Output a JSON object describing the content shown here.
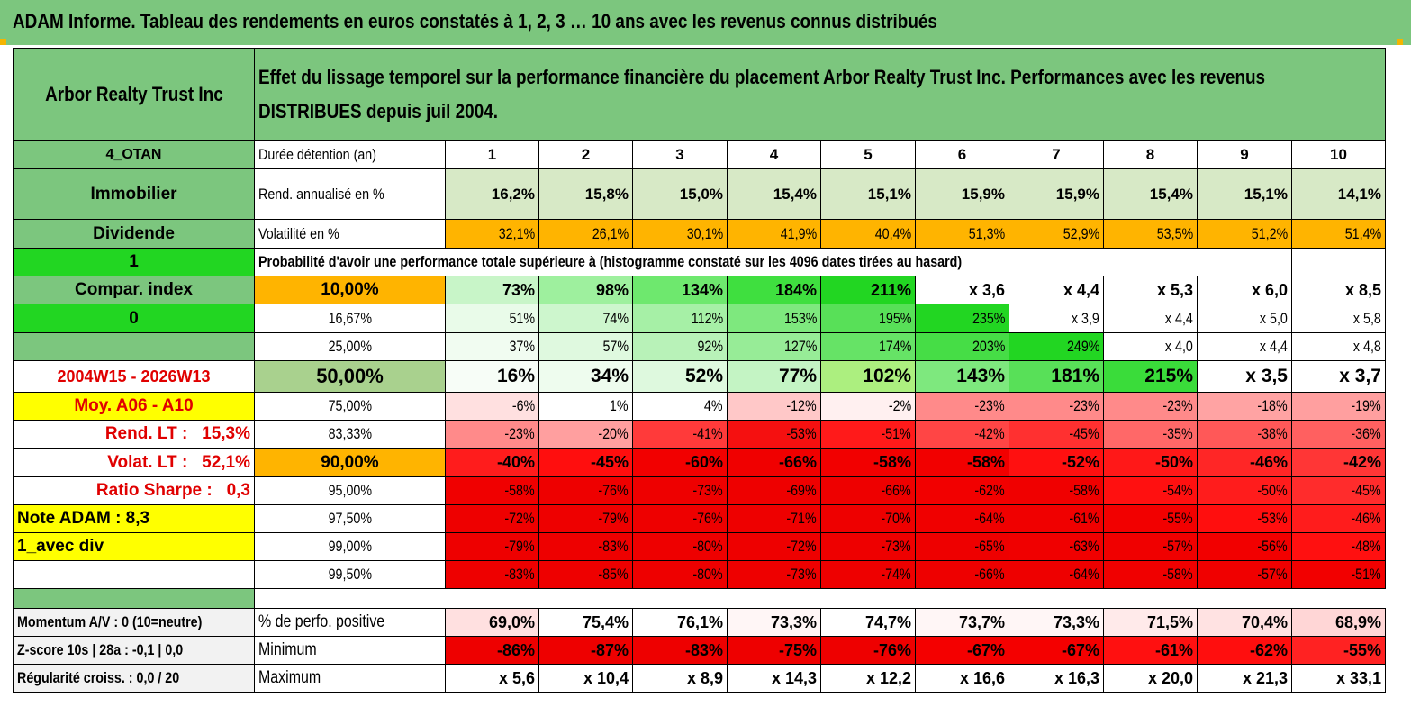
{
  "title": "ADAM Informe. Tableau des rendements en euros constatés à 1, 2, 3 … 10 ans avec les revenus connus distribués",
  "header": {
    "name": "Arbor Realty Trust Inc",
    "description_line1": "Effet du lissage temporel sur la performance financière du placement Arbor Realty Trust Inc. Performances avec les revenus",
    "description_line2": "DISTRIBUES depuis juil 2004."
  },
  "sidebar": {
    "code": "4_OTAN",
    "sector": "Immobilier",
    "type": "Dividende",
    "flag1": "1",
    "compar_index": "Compar. index",
    "flag2": "0",
    "period": "2004W15 - 2026W13",
    "moy": "Moy. A06 - A10",
    "rend_lt_label": "Rend. LT :",
    "rend_lt_value": "15,3%",
    "volat_lt_label": "Volat. LT :",
    "volat_lt_value": "52,1%",
    "sharpe_label": "Ratio Sharpe :",
    "sharpe_value": "0,3",
    "note": "Note ADAM : 8,3",
    "avec_div": "1_avec div"
  },
  "duration": {
    "label": "Durée détention (an)",
    "years": [
      "1",
      "2",
      "3",
      "4",
      "5",
      "6",
      "7",
      "8",
      "9",
      "10"
    ]
  },
  "rend": {
    "label": "Rend. annualisé en %",
    "values": [
      "16,2%",
      "15,8%",
      "15,0%",
      "15,4%",
      "15,1%",
      "15,9%",
      "15,9%",
      "15,4%",
      "15,1%",
      "14,1%"
    ]
  },
  "volat": {
    "label": "Volatilité en %",
    "values": [
      "32,1%",
      "26,1%",
      "30,1%",
      "41,9%",
      "40,4%",
      "51,3%",
      "52,9%",
      "53,5%",
      "51,2%",
      "51,4%"
    ]
  },
  "proba_header": "Probabilité d'avoir une performance totale supérieure à (histogramme constaté sur les 4096 dates tirées au hasard)",
  "quantiles": [
    {
      "p": "10,00%",
      "values": [
        "73%",
        "98%",
        "134%",
        "184%",
        "211%",
        "x 3,6",
        "x 4,4",
        "x 5,3",
        "x 6,0",
        "x 8,5"
      ]
    },
    {
      "p": "16,67%",
      "values": [
        "51%",
        "74%",
        "112%",
        "153%",
        "195%",
        "235%",
        "x 3,9",
        "x 4,4",
        "x 5,0",
        "x 5,8"
      ]
    },
    {
      "p": "25,00%",
      "values": [
        "37%",
        "57%",
        "92%",
        "127%",
        "174%",
        "203%",
        "249%",
        "x 4,0",
        "x 4,4",
        "x 4,8"
      ]
    },
    {
      "p": "50,00%",
      "values": [
        "16%",
        "34%",
        "52%",
        "77%",
        "102%",
        "143%",
        "181%",
        "215%",
        "x 3,5",
        "x 3,7"
      ]
    },
    {
      "p": "75,00%",
      "values": [
        "-6%",
        "1%",
        "4%",
        "-12%",
        "-2%",
        "-23%",
        "-23%",
        "-23%",
        "-18%",
        "-19%"
      ]
    },
    {
      "p": "83,33%",
      "values": [
        "-23%",
        "-20%",
        "-41%",
        "-53%",
        "-51%",
        "-42%",
        "-45%",
        "-35%",
        "-38%",
        "-36%"
      ]
    },
    {
      "p": "90,00%",
      "values": [
        "-40%",
        "-45%",
        "-60%",
        "-66%",
        "-58%",
        "-58%",
        "-52%",
        "-50%",
        "-46%",
        "-42%"
      ]
    },
    {
      "p": "95,00%",
      "values": [
        "-58%",
        "-76%",
        "-73%",
        "-69%",
        "-66%",
        "-62%",
        "-58%",
        "-54%",
        "-50%",
        "-45%"
      ]
    },
    {
      "p": "97,50%",
      "values": [
        "-72%",
        "-79%",
        "-76%",
        "-71%",
        "-70%",
        "-64%",
        "-61%",
        "-55%",
        "-53%",
        "-46%"
      ]
    },
    {
      "p": "99,00%",
      "values": [
        "-79%",
        "-83%",
        "-80%",
        "-72%",
        "-73%",
        "-65%",
        "-63%",
        "-57%",
        "-56%",
        "-48%"
      ]
    },
    {
      "p": "99,50%",
      "values": [
        "-83%",
        "-85%",
        "-80%",
        "-73%",
        "-74%",
        "-66%",
        "-64%",
        "-58%",
        "-57%",
        "-51%"
      ]
    }
  ],
  "bottom": {
    "momentum": "Momentum A/V : 0 (10=neutre)",
    "zscore": "Z-score 10s | 28a : -0,1 | 0,0",
    "regularite": "Régularité croiss. : 0,0 / 20",
    "positive": {
      "label": "% de perfo. positive",
      "values": [
        "69,0%",
        "75,4%",
        "76,1%",
        "73,3%",
        "74,7%",
        "73,7%",
        "73,3%",
        "71,5%",
        "70,4%",
        "68,9%"
      ]
    },
    "minimum": {
      "label": "Minimum",
      "values": [
        "-86%",
        "-87%",
        "-83%",
        "-75%",
        "-76%",
        "-67%",
        "-67%",
        "-61%",
        "-62%",
        "-55%"
      ]
    },
    "maximum": {
      "label": "Maximum",
      "values": [
        "x 5,6",
        "x 10,4",
        "x 8,9",
        "x 14,3",
        "x 12,2",
        "x 16,6",
        "x 16,3",
        "x 20,0",
        "x 21,3",
        "x 33,1"
      ]
    }
  },
  "colors": {
    "header_green": "#7cc67e",
    "bright_green": "#22d622",
    "orange": "#ffb400",
    "yellow": "#ffff00",
    "label_red": "#e00000"
  },
  "cell_colors": {
    "rend": [
      "#d7e9c6",
      "#d7e9c6",
      "#d7e9c6",
      "#d7e9c6",
      "#d7e9c6",
      "#d7e9c6",
      "#d7e9c6",
      "#d7e9c6",
      "#d7e9c6",
      "#d7e9c6"
    ],
    "volat": [
      "#ffb400",
      "#ffb400",
      "#ffb400",
      "#ffb400",
      "#ffb400",
      "#ffb400",
      "#ffb400",
      "#ffb400",
      "#ffb400",
      "#ffb400"
    ],
    "quantiles": [
      [
        "#c8f5c8",
        "#9ef09e",
        "#6ee86e",
        "#3fdf3f",
        "#22d622",
        "#ffffff",
        "#ffffff",
        "#ffffff",
        "#ffffff",
        "#ffffff"
      ],
      [
        "#e9fbe9",
        "#cdf6cd",
        "#a6f0a6",
        "#7ee87e",
        "#58e058",
        "#22d622",
        "#ffffff",
        "#ffffff",
        "#ffffff",
        "#ffffff"
      ],
      [
        "#f1fcf1",
        "#dff9df",
        "#b8f2b8",
        "#97ec97",
        "#66e366",
        "#46dd46",
        "#22d622",
        "#ffffff",
        "#ffffff",
        "#ffffff"
      ],
      [
        "#f7fdf7",
        "#eefcee",
        "#def9de",
        "#c4f4c4",
        "#acef7f",
        "#7ee87e",
        "#58e058",
        "#3adc3a",
        "#ffffff",
        "#ffffff"
      ],
      [
        "#ffe0e0",
        "#ffffff",
        "#ffffff",
        "#ffc8c8",
        "#fff0f0",
        "#ff8a8a",
        "#ff8a8a",
        "#ff8a8a",
        "#ffa3a3",
        "#ff9f9f"
      ],
      [
        "#ff8a8a",
        "#ff9f9f",
        "#ff3a3a",
        "#f51010",
        "#ff1a1a",
        "#ff4545",
        "#ff3030",
        "#ff6868",
        "#ff5858",
        "#ff6060"
      ],
      [
        "#ff1c1c",
        "#ff0e0e",
        "#f20000",
        "#f00000",
        "#f20000",
        "#f20000",
        "#ff1010",
        "#ff1818",
        "#ff2626",
        "#ff3636"
      ],
      [
        "#f00000",
        "#ee0000",
        "#ee0000",
        "#ee0000",
        "#ee0000",
        "#f20000",
        "#f00000",
        "#ff1010",
        "#ff1c1c",
        "#ff2c2c"
      ],
      [
        "#ee0000",
        "#ee0000",
        "#ee0000",
        "#ee0000",
        "#ee0000",
        "#f00000",
        "#f00000",
        "#f20000",
        "#ff0e0e",
        "#ff1c1c"
      ],
      [
        "#ee0000",
        "#ee0000",
        "#ee0000",
        "#ee0000",
        "#ee0000",
        "#ee0000",
        "#f00000",
        "#f00000",
        "#f20000",
        "#ff1010"
      ],
      [
        "#ee0000",
        "#ee0000",
        "#ee0000",
        "#ee0000",
        "#ee0000",
        "#ee0000",
        "#ee0000",
        "#f00000",
        "#f00000",
        "#f20000"
      ]
    ],
    "positive": [
      "#ffe0e0",
      "#ffffff",
      "#ffffff",
      "#fff6f6",
      "#ffffff",
      "#fff6f6",
      "#fff6f6",
      "#ffeaea",
      "#ffe2e2",
      "#ffd6d6"
    ],
    "minimum": [
      "#ee0000",
      "#ee0000",
      "#ee0000",
      "#ee0000",
      "#ee0000",
      "#f40000",
      "#f40000",
      "#ff1010",
      "#ff0e0e",
      "#ff2222"
    ]
  }
}
